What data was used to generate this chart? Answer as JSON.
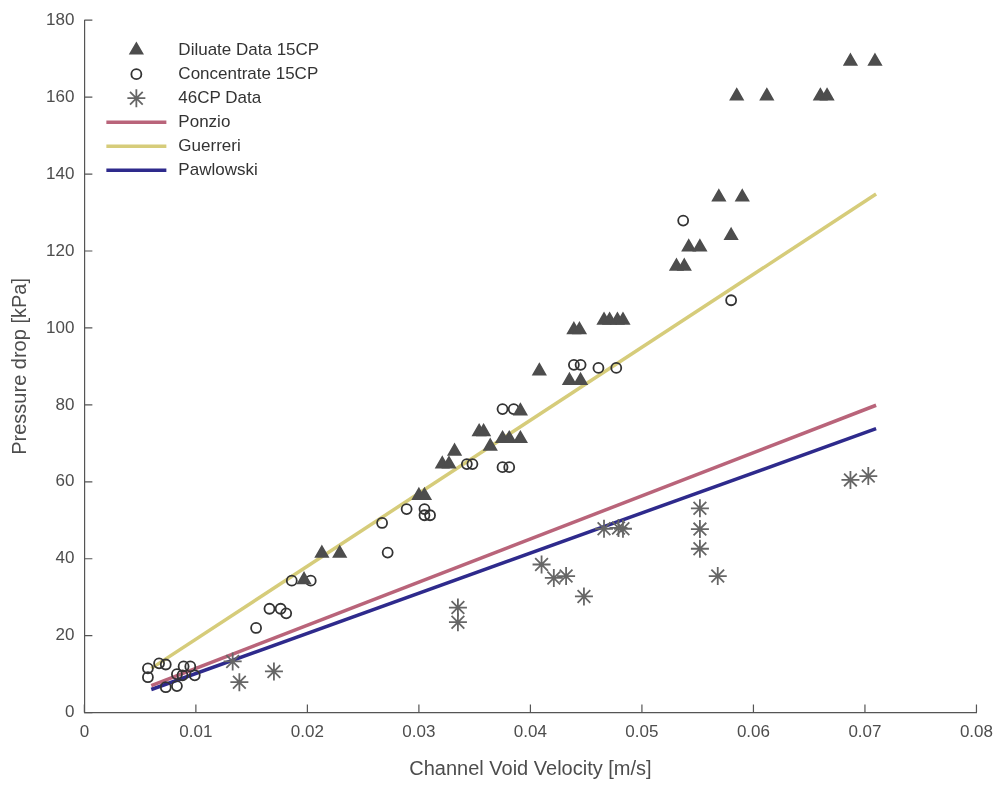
{
  "chart_data": {
    "type": "scatter",
    "xlabel": "Channel Void Velocity [m/s]",
    "ylabel": "Pressure drop [kPa]",
    "xlim": [
      0,
      0.08
    ],
    "xticks": [
      0,
      0.01,
      0.02,
      0.03,
      0.04,
      0.05,
      0.06,
      0.07,
      0.08
    ],
    "ylim": [
      0,
      180
    ],
    "yticks": [
      0,
      20,
      40,
      60,
      80,
      100,
      120,
      140,
      160,
      180
    ],
    "grid": false,
    "legend": "top left",
    "series": [
      {
        "name": "Diluate Data 15CP",
        "type": "scatter",
        "marker": "triangle",
        "color": "#4d4d4d",
        "x": [
          0.0197,
          0.0213,
          0.0229,
          0.03,
          0.0305,
          0.0321,
          0.0327,
          0.0332,
          0.0354,
          0.0358,
          0.0364,
          0.0375,
          0.0381,
          0.0391,
          0.0391,
          0.0408,
          0.0435,
          0.0445,
          0.0439,
          0.0444,
          0.0466,
          0.0471,
          0.0478,
          0.0483,
          0.0531,
          0.0538,
          0.0542,
          0.0552,
          0.058,
          0.0569,
          0.059,
          0.0585,
          0.0612,
          0.066,
          0.0666,
          0.0687,
          0.0709
        ],
        "values": [
          34.5,
          41.4,
          41.4,
          56.4,
          56.4,
          64.6,
          64.6,
          67.9,
          73,
          73,
          69.2,
          71.2,
          71.2,
          71.2,
          78.4,
          88.8,
          86.3,
          86.3,
          99.5,
          99.5,
          102,
          102,
          102,
          102,
          116,
          116,
          121,
          121,
          124,
          134,
          134,
          160.3,
          160.3,
          160.3,
          160.3,
          169.3,
          169.3
        ]
      },
      {
        "name": "Concentrate 15CP",
        "type": "scatter",
        "marker": "circle",
        "color": "#333333",
        "x": [
          0.0057,
          0.0057,
          0.0067,
          0.0073,
          0.0073,
          0.0083,
          0.0083,
          0.0088,
          0.0089,
          0.0095,
          0.0099,
          0.0154,
          0.0166,
          0.0176,
          0.0181,
          0.0186,
          0.0203,
          0.0267,
          0.0272,
          0.0289,
          0.0305,
          0.0305,
          0.031,
          0.0343,
          0.0348,
          0.0375,
          0.0385,
          0.0375,
          0.0381,
          0.0439,
          0.0445,
          0.0461,
          0.0477,
          0.0537,
          0.058
        ],
        "values": [
          11.5,
          9.2,
          12.8,
          12.5,
          6.6,
          6.9,
          10,
          9.7,
          12,
          12,
          9.7,
          22,
          27,
          27,
          25.8,
          34.3,
          34.3,
          49.3,
          41.6,
          52.9,
          52.9,
          51.3,
          51.3,
          64.6,
          64.6,
          78.9,
          78.9,
          63.8,
          63.8,
          90.4,
          90.4,
          89.6,
          89.6,
          127.9,
          107.2
        ]
      },
      {
        "name": "46CP Data",
        "type": "scatter",
        "marker": "cross",
        "color": "#666666",
        "x": [
          0.0133,
          0.0139,
          0.017,
          0.0335,
          0.0335,
          0.041,
          0.0421,
          0.0432,
          0.0448,
          0.0466,
          0.0479,
          0.0483,
          0.0552,
          0.0552,
          0.0552,
          0.0568,
          0.0687,
          0.0703
        ],
        "values": [
          13.3,
          7.9,
          10.7,
          27.3,
          23.5,
          38.5,
          35,
          35.5,
          30.2,
          47.8,
          48,
          47.8,
          53.1,
          47.7,
          42.6,
          35.5,
          60.5,
          61.5
        ]
      },
      {
        "name": "Ponzio",
        "type": "line",
        "color": "#b9647a",
        "x": [
          0.006,
          0.071
        ],
        "values": [
          7,
          79.9
        ]
      },
      {
        "name": "Guerreri",
        "type": "line",
        "color": "#d6cc7a",
        "x": [
          0.006,
          0.071
        ],
        "values": [
          11.5,
          134.8
        ]
      },
      {
        "name": "Pawlowski",
        "type": "line",
        "color": "#2e2a8c",
        "x": [
          0.006,
          0.071
        ],
        "values": [
          6,
          73.8
        ]
      }
    ]
  }
}
